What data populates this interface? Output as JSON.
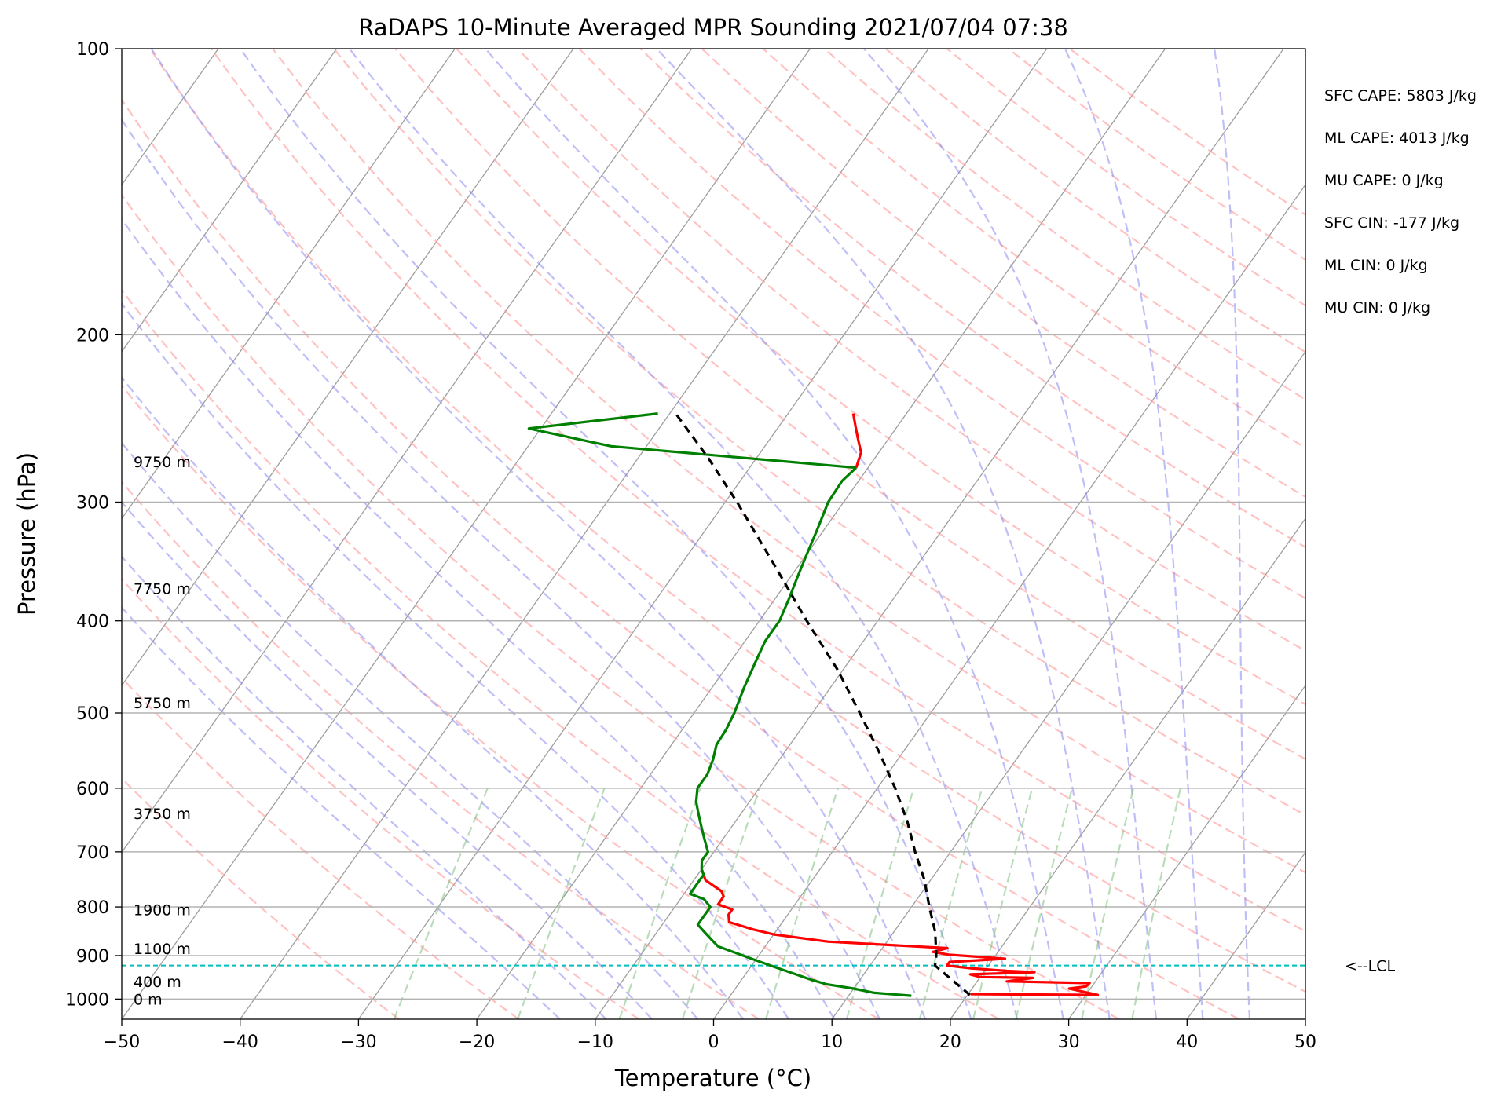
{
  "chart_data": {
    "type": "skew-t log-p sounding",
    "title": "RaDAPS 10-Minute Averaged MPR Sounding 2021/07/04 07:38",
    "xlabel": "Temperature (°C)",
    "ylabel": "Pressure (hPa)",
    "xlim": [
      -50,
      50
    ],
    "ylim": [
      1050,
      100
    ],
    "x_ticks": [
      -50,
      -40,
      -30,
      -20,
      -10,
      0,
      10,
      20,
      30,
      40,
      50
    ],
    "x_tick_labels": [
      "−50",
      "−40",
      "−30",
      "−20",
      "−10",
      "0",
      "10",
      "20",
      "30",
      "40",
      "50"
    ],
    "y_ticks": [
      100,
      200,
      300,
      400,
      500,
      600,
      700,
      800,
      900,
      1000
    ],
    "y_tick_labels": [
      "100",
      "200",
      "300",
      "400",
      "500",
      "600",
      "700",
      "800",
      "900",
      "1000"
    ],
    "y_scale": "log",
    "grid": true,
    "background_lines": {
      "isotherms": "gray solid, skewed",
      "dry_adiabats": "red dashed",
      "moist_adiabats": "blue dashed",
      "mixing_ratio_lines": "green dashed"
    },
    "series": [
      {
        "name": "",
        "color": "#ff0000",
        "points": [
          [
            988,
            20.2
          ],
          [
            990,
            31
          ],
          [
            975,
            28.2
          ],
          [
            970,
            29.5
          ],
          [
            962,
            29.6
          ],
          [
            958,
            22.5
          ],
          [
            950,
            24.5
          ],
          [
            948,
            20
          ],
          [
            942,
            19
          ],
          [
            937,
            24.3
          ],
          [
            934,
            21.9
          ],
          [
            928,
            18.7
          ],
          [
            922,
            16.5
          ],
          [
            914,
            16.5
          ],
          [
            907,
            21
          ],
          [
            898,
            16
          ],
          [
            892,
            14.5
          ],
          [
            884,
            15.5
          ],
          [
            870,
            5
          ],
          [
            855,
            0
          ],
          [
            845,
            -2
          ],
          [
            830,
            -4.5
          ],
          [
            815,
            -5
          ],
          [
            805,
            -5
          ],
          [
            795,
            -6.5
          ],
          [
            780,
            -6.5
          ],
          [
            770,
            -7
          ],
          [
            750,
            -9
          ],
          [
            730,
            -10
          ]
        ]
      },
      {
        "name": "",
        "color": "#ff0000",
        "points": [
          [
            276,
            -21
          ],
          [
            266,
            -21.5
          ],
          [
            258,
            -22.5
          ],
          [
            250,
            -23.5
          ],
          [
            242,
            -24.5
          ]
        ]
      },
      {
        "name": "",
        "color": "#008000",
        "points": [
          [
            992,
            15.3
          ],
          [
            985,
            12
          ],
          [
            975,
            10
          ],
          [
            965,
            7.5
          ],
          [
            955,
            6
          ],
          [
            940,
            4
          ],
          [
            925,
            2
          ],
          [
            910,
            0
          ],
          [
            895,
            -2
          ],
          [
            880,
            -4
          ],
          [
            865,
            -5
          ],
          [
            850,
            -6
          ],
          [
            835,
            -7
          ],
          [
            820,
            -7
          ],
          [
            808,
            -7
          ],
          [
            800,
            -7
          ],
          [
            785,
            -8
          ],
          [
            775,
            -9.5
          ],
          [
            760,
            -9.5
          ],
          [
            750,
            -9.5
          ],
          [
            740,
            -9.5
          ],
          [
            730,
            -10
          ],
          [
            715,
            -10.5
          ],
          [
            700,
            -10.5
          ],
          [
            680,
            -11.5
          ],
          [
            660,
            -12.5
          ],
          [
            640,
            -13.5
          ],
          [
            620,
            -14.5
          ],
          [
            600,
            -15.2
          ],
          [
            580,
            -15.2
          ],
          [
            560,
            -15.6
          ],
          [
            540,
            -16.2
          ],
          [
            520,
            -16.3
          ],
          [
            500,
            -16.6
          ],
          [
            470,
            -17.3
          ],
          [
            440,
            -17.9
          ],
          [
            420,
            -18.3
          ],
          [
            400,
            -18.3
          ],
          [
            380,
            -18.8
          ],
          [
            360,
            -19.4
          ],
          [
            340,
            -20
          ],
          [
            320,
            -20.6
          ],
          [
            300,
            -21.3
          ],
          [
            285,
            -21.4
          ],
          [
            276,
            -21
          ]
        ]
      },
      {
        "name": "",
        "color": "#008000",
        "points": [
          [
            276,
            -21
          ],
          [
            262,
            -43
          ],
          [
            251,
            -51
          ],
          [
            242,
            -41
          ]
        ]
      },
      {
        "name": "",
        "color": "#000000",
        "dashed": true,
        "points": [
          [
            990,
            20.2
          ],
          [
            922,
            15.5
          ],
          [
            900,
            15
          ],
          [
            850,
            13.5
          ],
          [
            800,
            11.5
          ],
          [
            750,
            9.5
          ],
          [
            700,
            7
          ],
          [
            650,
            4.5
          ],
          [
            600,
            1.5
          ],
          [
            550,
            -2
          ],
          [
            500,
            -6
          ],
          [
            450,
            -10.5
          ],
          [
            400,
            -16
          ],
          [
            350,
            -22
          ],
          [
            300,
            -29
          ],
          [
            270,
            -34
          ],
          [
            242,
            -39.5
          ]
        ]
      }
    ],
    "lcl_pressure": 922,
    "lcl_label": "<--LCL",
    "height_labels": [
      {
        "text": "0 m",
        "p": 1000
      },
      {
        "text": "400 m",
        "p": 958
      },
      {
        "text": "1100 m",
        "p": 885
      },
      {
        "text": "1900 m",
        "p": 805
      },
      {
        "text": "3750 m",
        "p": 638
      },
      {
        "text": "5750 m",
        "p": 488
      },
      {
        "text": "7750 m",
        "p": 370
      },
      {
        "text": "9750 m",
        "p": 272
      }
    ],
    "stats": [
      "SFC CAPE: 5803 J/kg",
      "ML CAPE: 4013 J/kg",
      "MU CAPE: 0 J/kg",
      "SFC CIN: -177 J/kg",
      "ML CIN: 0 J/kg",
      "MU CIN: 0 J/kg"
    ]
  }
}
